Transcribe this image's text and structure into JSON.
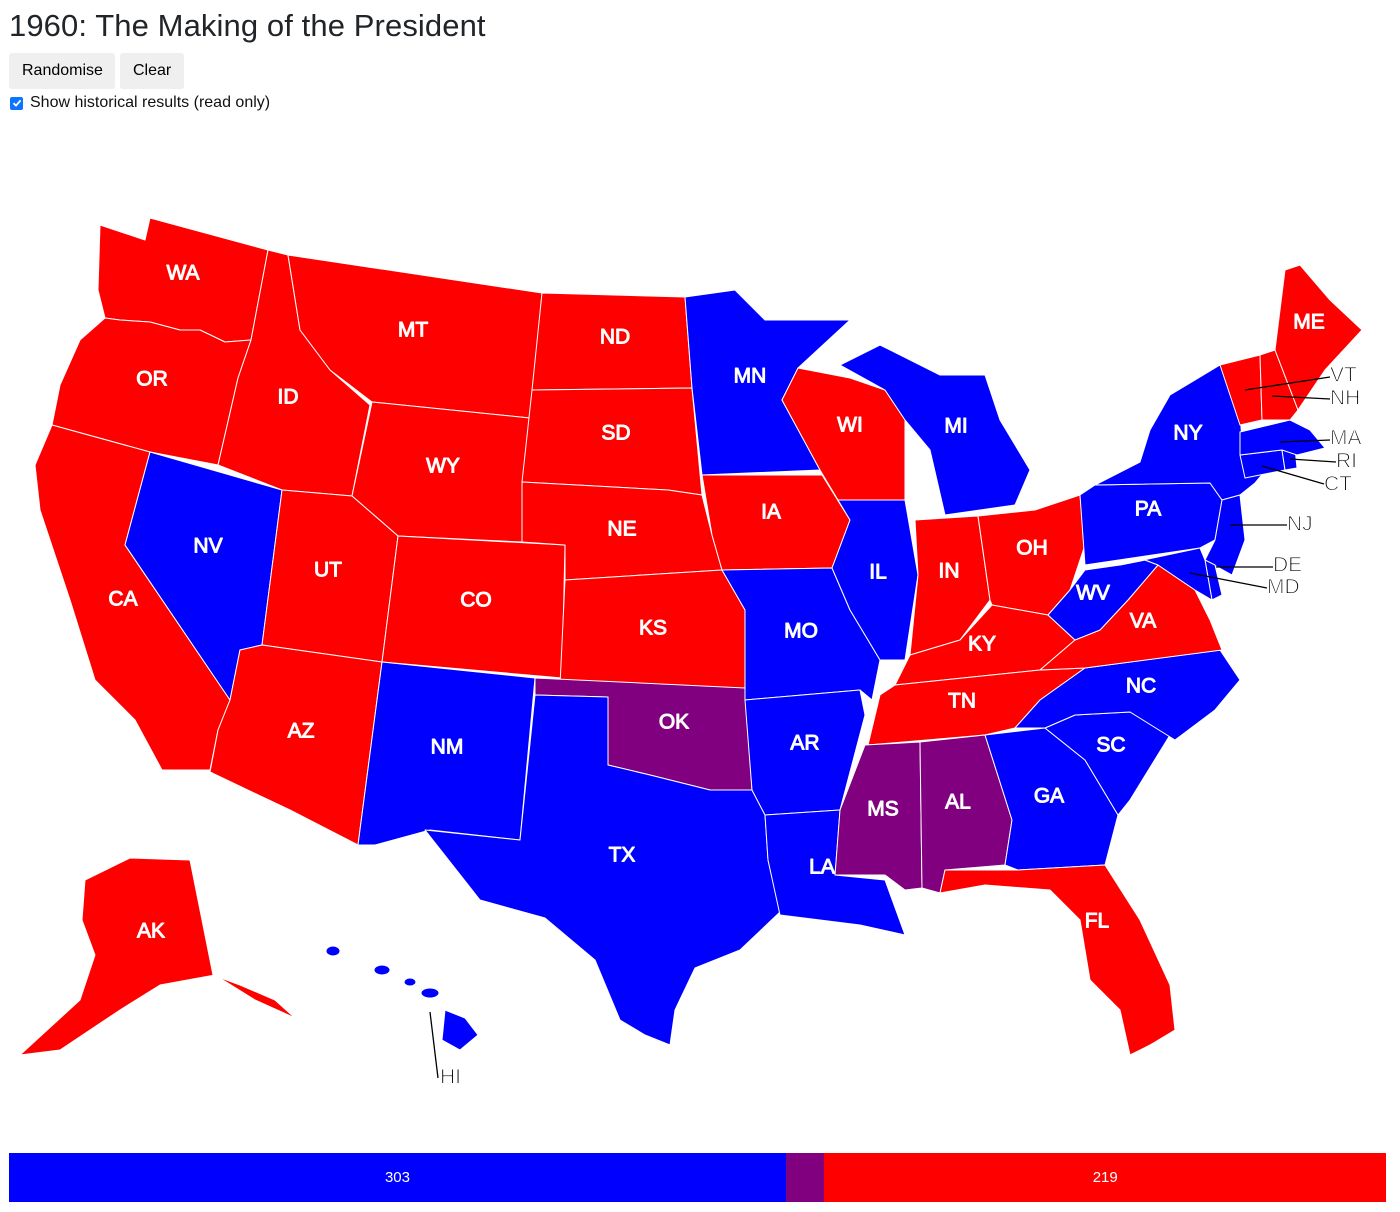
{
  "page": {
    "title": "1960: The Making of the President",
    "buttons": {
      "randomise": "Randomise",
      "clear": "Clear"
    },
    "historical_toggle": {
      "label": "Show historical results (read only)",
      "checked": true
    }
  },
  "colors": {
    "dem": "#0000ff",
    "rep": "#ff0000",
    "unpledged": "#800080",
    "border": "#ffffff"
  },
  "states": [
    {
      "abbr": "WA",
      "party": "rep"
    },
    {
      "abbr": "OR",
      "party": "rep"
    },
    {
      "abbr": "CA",
      "party": "rep"
    },
    {
      "abbr": "NV",
      "party": "dem"
    },
    {
      "abbr": "ID",
      "party": "rep"
    },
    {
      "abbr": "MT",
      "party": "rep"
    },
    {
      "abbr": "WY",
      "party": "rep"
    },
    {
      "abbr": "UT",
      "party": "rep"
    },
    {
      "abbr": "AZ",
      "party": "rep"
    },
    {
      "abbr": "CO",
      "party": "rep"
    },
    {
      "abbr": "NM",
      "party": "dem"
    },
    {
      "abbr": "ND",
      "party": "rep"
    },
    {
      "abbr": "SD",
      "party": "rep"
    },
    {
      "abbr": "NE",
      "party": "rep"
    },
    {
      "abbr": "KS",
      "party": "rep"
    },
    {
      "abbr": "OK",
      "party": "unpledged"
    },
    {
      "abbr": "TX",
      "party": "dem"
    },
    {
      "abbr": "MN",
      "party": "dem"
    },
    {
      "abbr": "IA",
      "party": "rep"
    },
    {
      "abbr": "MO",
      "party": "dem"
    },
    {
      "abbr": "AR",
      "party": "dem"
    },
    {
      "abbr": "LA",
      "party": "dem"
    },
    {
      "abbr": "WI",
      "party": "rep"
    },
    {
      "abbr": "IL",
      "party": "dem"
    },
    {
      "abbr": "MI",
      "party": "dem"
    },
    {
      "abbr": "IN",
      "party": "rep"
    },
    {
      "abbr": "OH",
      "party": "rep"
    },
    {
      "abbr": "KY",
      "party": "rep"
    },
    {
      "abbr": "TN",
      "party": "rep"
    },
    {
      "abbr": "MS",
      "party": "unpledged"
    },
    {
      "abbr": "AL",
      "party": "unpledged"
    },
    {
      "abbr": "GA",
      "party": "dem"
    },
    {
      "abbr": "FL",
      "party": "rep"
    },
    {
      "abbr": "SC",
      "party": "dem"
    },
    {
      "abbr": "NC",
      "party": "dem"
    },
    {
      "abbr": "VA",
      "party": "rep"
    },
    {
      "abbr": "WV",
      "party": "dem"
    },
    {
      "abbr": "PA",
      "party": "dem"
    },
    {
      "abbr": "NY",
      "party": "dem"
    },
    {
      "abbr": "NJ",
      "party": "dem"
    },
    {
      "abbr": "DE",
      "party": "dem"
    },
    {
      "abbr": "MD",
      "party": "dem"
    },
    {
      "abbr": "CT",
      "party": "dem"
    },
    {
      "abbr": "RI",
      "party": "dem"
    },
    {
      "abbr": "MA",
      "party": "dem"
    },
    {
      "abbr": "VT",
      "party": "rep"
    },
    {
      "abbr": "NH",
      "party": "rep"
    },
    {
      "abbr": "ME",
      "party": "rep"
    },
    {
      "abbr": "AK",
      "party": "rep"
    },
    {
      "abbr": "HI",
      "party": "dem"
    }
  ],
  "tally": {
    "dem_votes": "303",
    "unpledged_votes": 15,
    "rep_votes": "219",
    "total_votes": 537
  }
}
